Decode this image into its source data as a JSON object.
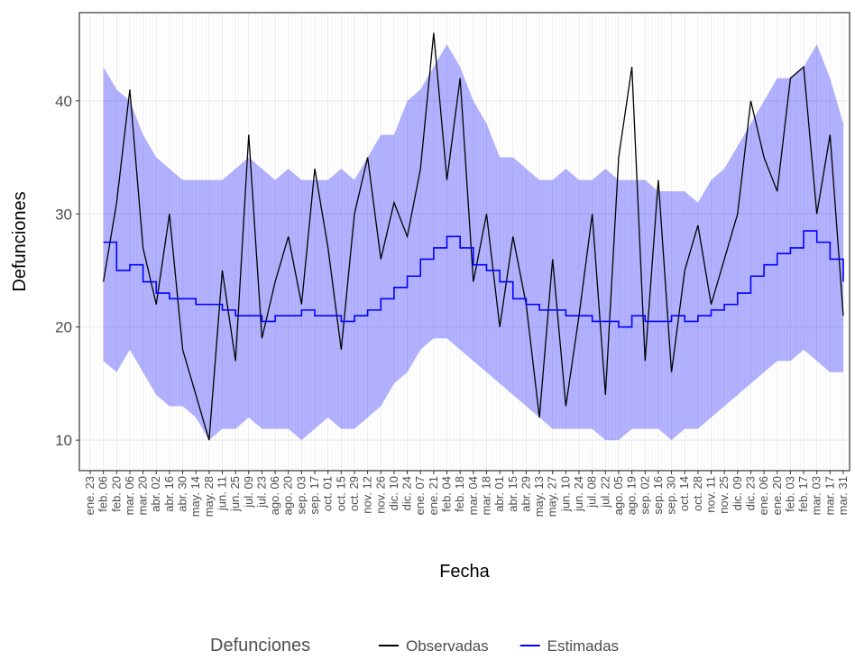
{
  "chart_data": {
    "type": "line",
    "x_title": "Fecha",
    "y_title": "Defunciones",
    "legend_title": "Defunciones",
    "legend_position": "bottom",
    "grid": true,
    "categories": [
      "ene. 23",
      "feb. 06",
      "feb. 20",
      "mar. 06",
      "mar. 20",
      "abr. 02",
      "abr. 16",
      "abr. 30",
      "may. 14",
      "may. 28",
      "jun. 11",
      "jun. 25",
      "jul. 09",
      "jul. 23",
      "ago. 06",
      "ago. 20",
      "sep. 03",
      "sep. 17",
      "oct. 01",
      "oct. 15",
      "oct. 29",
      "nov. 12",
      "nov. 26",
      "dic. 10",
      "dic. 24",
      "ene. 07",
      "ene. 21",
      "feb. 04",
      "feb. 18",
      "mar. 04",
      "mar. 18",
      "abr. 01",
      "abr. 15",
      "abr. 29",
      "may. 13",
      "may. 27",
      "jun. 10",
      "jun. 24",
      "jul. 08",
      "jul. 22",
      "ago. 05",
      "ago. 19",
      "sep. 02",
      "sep. 16",
      "sep. 30",
      "oct. 14",
      "oct. 28",
      "nov. 11",
      "nov. 25",
      "dic. 09",
      "dic. 23",
      "ene. 06",
      "ene. 20",
      "feb. 03",
      "feb. 17",
      "mar. 03",
      "mar. 17",
      "mar. 31"
    ],
    "ylim": [
      7.3,
      47.8
    ],
    "yticks": [
      10,
      20,
      30,
      40
    ],
    "band": {
      "color": "#0000ff",
      "opacity": 0.3,
      "lower": [
        null,
        17,
        16,
        18,
        16,
        14,
        13,
        13,
        12,
        10,
        11,
        11,
        12,
        11,
        11,
        11,
        10,
        11,
        12,
        11,
        11,
        12,
        13,
        15,
        16,
        18,
        19,
        19,
        18,
        17,
        16,
        15,
        14,
        13,
        12,
        11,
        11,
        11,
        11,
        10,
        10,
        11,
        11,
        11,
        10,
        11,
        11,
        12,
        13,
        14,
        15,
        16,
        17,
        17,
        18,
        17,
        16,
        16
      ],
      "upper": [
        null,
        43,
        41,
        40,
        37,
        35,
        34,
        33,
        33,
        33,
        33,
        34,
        35,
        34,
        33,
        34,
        33,
        33,
        33,
        34,
        33,
        35,
        37,
        37,
        40,
        41,
        43,
        45,
        43,
        40,
        38,
        35,
        35,
        34,
        33,
        33,
        34,
        33,
        33,
        34,
        33,
        33,
        33,
        32,
        32,
        32,
        31,
        33,
        34,
        36,
        38,
        40,
        42,
        42,
        43,
        45,
        42,
        38
      ]
    },
    "series": [
      {
        "name": "Observadas",
        "color": "#000000",
        "step": false,
        "values": [
          null,
          24,
          31,
          41,
          27,
          22,
          30,
          18,
          14,
          10,
          25,
          17,
          37,
          19,
          24,
          28,
          22,
          34,
          27,
          18,
          30,
          35,
          26,
          31,
          28,
          34,
          46,
          33,
          42,
          24,
          30,
          20,
          28,
          22,
          12,
          26,
          13,
          21,
          30,
          14,
          35,
          43,
          17,
          33,
          16,
          25,
          29,
          22,
          26,
          30,
          40,
          35,
          32,
          42,
          43,
          30,
          37,
          21
        ]
      },
      {
        "name": "Estimadas",
        "color": "#0000ff",
        "step": true,
        "values": [
          null,
          27.5,
          25,
          25.5,
          24,
          23,
          22.5,
          22.5,
          22,
          22,
          21.5,
          21,
          21,
          20.5,
          21,
          21,
          21.5,
          21,
          21,
          20.5,
          21,
          21.5,
          22.5,
          23.5,
          24.5,
          26,
          27,
          28,
          27,
          25.5,
          25,
          24,
          22.5,
          22,
          21.5,
          21.5,
          21,
          21,
          20.5,
          20.5,
          20,
          21,
          20.5,
          20.5,
          21,
          20.5,
          21,
          21.5,
          22,
          23,
          24.5,
          25.5,
          26.5,
          27,
          28.5,
          27.5,
          26,
          24
        ]
      }
    ]
  }
}
